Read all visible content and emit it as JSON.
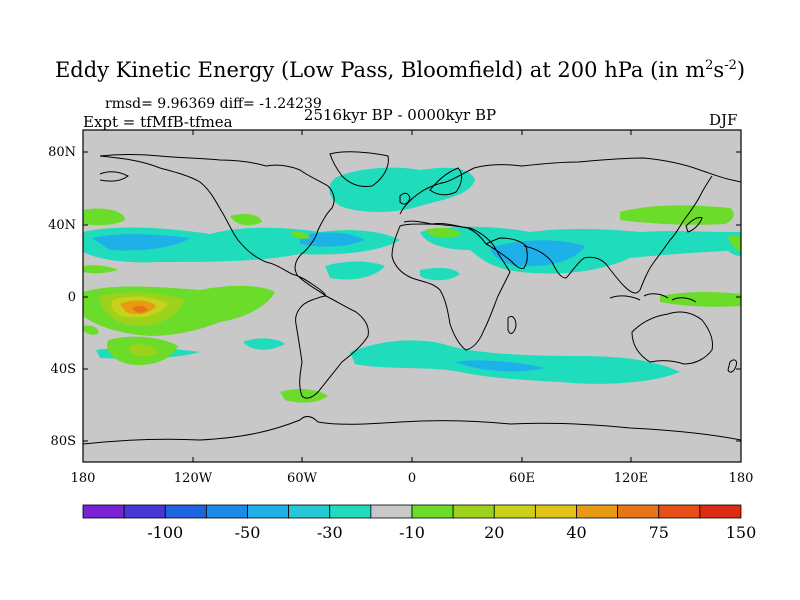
{
  "title_main": "Eddy Kinetic Energy (Low Pass, Bloomfield) at 200 hPa (in m",
  "title_sup1": "2",
  "title_mid": "s",
  "title_sup2": "-2",
  "title_end": ")",
  "stats": "rmsd= 9.96369 diff= -1.24239",
  "expt": "Expt = tfMfB-tfmea",
  "period": "2516kyr BP - 0000kyr BP",
  "season": "DJF",
  "lat_labels": [
    "80N",
    "40N",
    "0",
    "40S",
    "80S"
  ],
  "lon_labels": [
    "180",
    "120W",
    "60W",
    "0",
    "60E",
    "120E",
    "180"
  ],
  "colorbar": {
    "colors": [
      "#7a22d6",
      "#4a35d8",
      "#1f63e0",
      "#1e8ae8",
      "#1eb0e8",
      "#26c8d6",
      "#1fddbc",
      "#c8c8c8",
      "#6bdc2a",
      "#9ed21a",
      "#c8d21a",
      "#e0c414",
      "#e89a14",
      "#e8741a",
      "#e84e1a",
      "#e02a12"
    ],
    "labels": [
      "-100",
      "-50",
      "-30",
      "-10",
      "20",
      "40",
      "75",
      "150"
    ]
  },
  "colors": {
    "land_ocean_fill": "#c8c8c8",
    "coast": "#000000",
    "neg_light": "#1fddbc",
    "neg_mid": "#26c8d6",
    "neg_strong": "#1eb0e8",
    "pos_light": "#6bdc2a",
    "pos_mid": "#9ed21a",
    "pos_yellow": "#c8d21a",
    "pos_orange": "#e89a14",
    "pos_red": "#e8741a"
  }
}
